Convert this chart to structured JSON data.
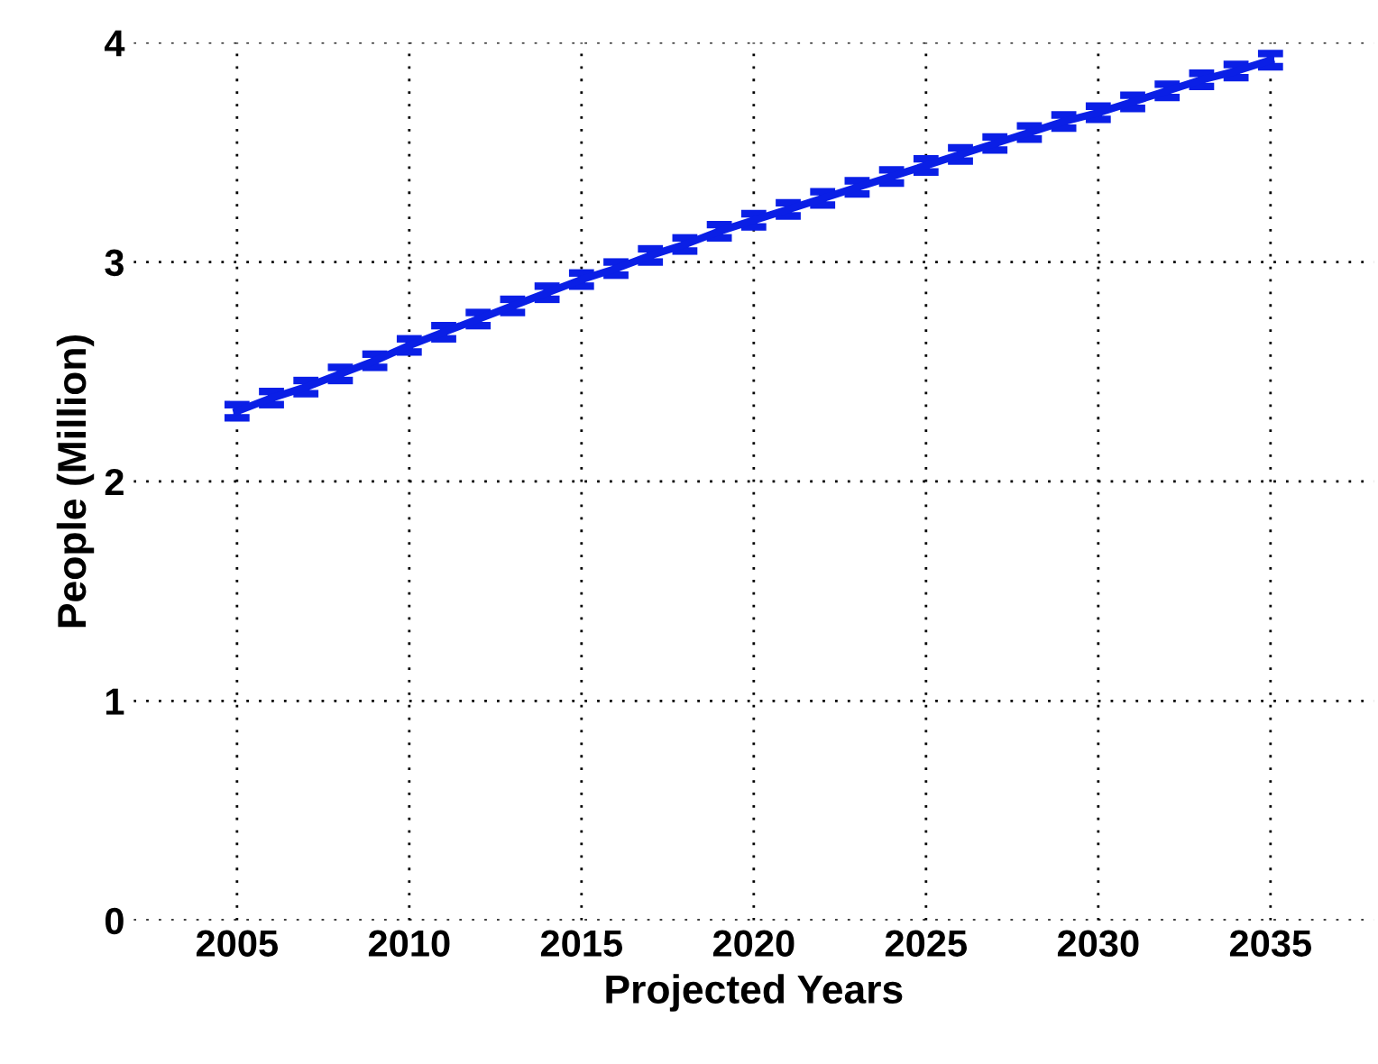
{
  "chart_data": {
    "type": "line",
    "xlabel": "Projected Years",
    "ylabel": "People (Million)",
    "x": [
      2005,
      2006,
      2007,
      2008,
      2009,
      2010,
      2011,
      2012,
      2013,
      2014,
      2015,
      2016,
      2017,
      2018,
      2019,
      2020,
      2021,
      2022,
      2023,
      2024,
      2025,
      2026,
      2027,
      2028,
      2029,
      2030,
      2031,
      2032,
      2033,
      2034,
      2035
    ],
    "series": [
      {
        "color": "#0a1fe6",
        "values": [
          2.32,
          2.38,
          2.43,
          2.49,
          2.55,
          2.62,
          2.68,
          2.74,
          2.8,
          2.86,
          2.92,
          2.97,
          3.03,
          3.08,
          3.14,
          3.19,
          3.24,
          3.29,
          3.34,
          3.39,
          3.44,
          3.49,
          3.54,
          3.59,
          3.64,
          3.68,
          3.73,
          3.78,
          3.83,
          3.87,
          3.92
        ],
        "errors": [
          0.03,
          0.03,
          0.03,
          0.03,
          0.03,
          0.03,
          0.03,
          0.03,
          0.03,
          0.03,
          0.03,
          0.03,
          0.03,
          0.03,
          0.03,
          0.03,
          0.03,
          0.03,
          0.03,
          0.03,
          0.03,
          0.03,
          0.03,
          0.03,
          0.03,
          0.03,
          0.03,
          0.03,
          0.03,
          0.03,
          0.03
        ]
      }
    ],
    "xlim": [
      2002,
      2038
    ],
    "xticks": [
      2005,
      2010,
      2015,
      2020,
      2025,
      2030,
      2035
    ],
    "ylim": [
      0,
      4
    ],
    "yticks": [
      0,
      1,
      2,
      3,
      4
    ],
    "grid": true,
    "marker": "none",
    "line_style": "solid"
  }
}
